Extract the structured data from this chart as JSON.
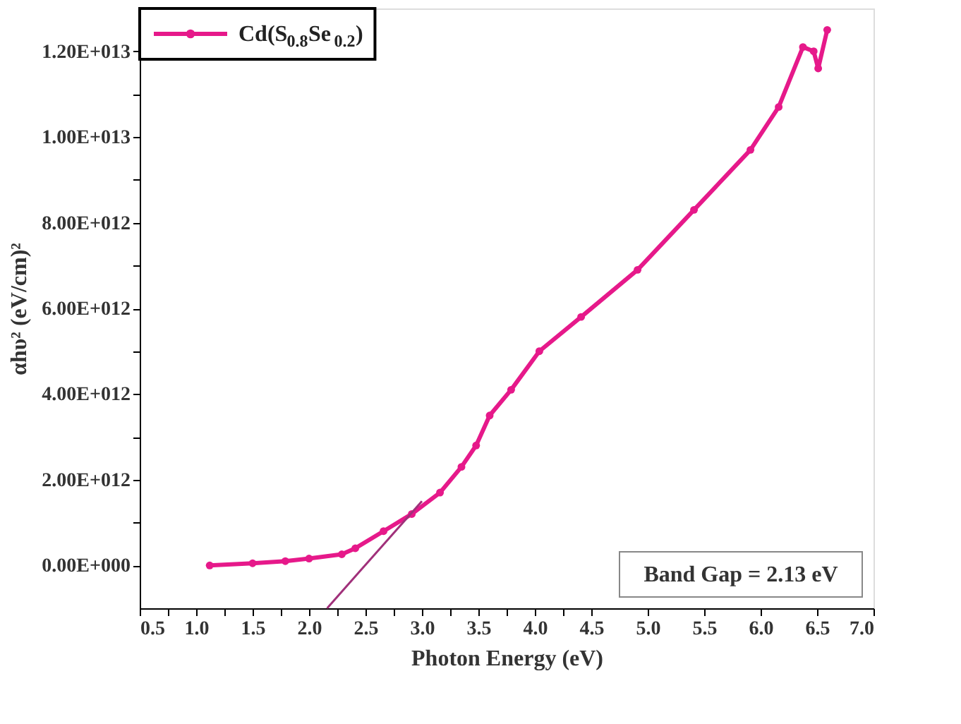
{
  "chart_data": {
    "type": "line",
    "xlabel": "Photon Energy (eV)",
    "ylabel": "αhυ² (eV/cm)²",
    "series": [
      {
        "name": "Cd(S$_{0.8}$Se$_{0.2}$)",
        "color": "#e6198a",
        "marker": "circle",
        "x": [
          1.12,
          1.5,
          1.79,
          2.0,
          2.29,
          2.41,
          2.66,
          2.91,
          3.16,
          3.35,
          3.48,
          3.6,
          3.79,
          4.04,
          4.41,
          4.91,
          5.41,
          5.91,
          6.16,
          6.375,
          6.47,
          6.51,
          6.59
        ],
        "values": [
          0.0,
          50000000000.0,
          100000000000.0,
          160000000000.0,
          260000000000.0,
          400000000000.0,
          800000000000.0,
          1200000000000.0,
          1700000000000.0,
          2300000000000.0,
          2800000000000.0,
          3500000000000.0,
          4100000000000.0,
          5000000000000.0,
          5800000000000.0,
          6900000000000.0,
          8300000000000.0,
          9700000000000.0,
          10700000000000.0,
          12100000000000.0,
          12000000000000.0,
          11600000000000.0,
          12500000000000.0
        ]
      },
      {
        "type": "line",
        "color": "#a0307a",
        "marker": "none",
        "x": [
          2.16,
          3.0
        ],
        "values": [
          -1000000000000.0,
          1500000000000.0
        ]
      }
    ],
    "xlim": [
      0.5,
      7.0
    ],
    "xticks": [
      {
        "value": 0.5,
        "label": "0.5"
      },
      {
        "value": 0.75,
        "label": null
      },
      {
        "value": 1.0,
        "label": "1.0"
      },
      {
        "value": 1.25,
        "label": null
      },
      {
        "value": 1.5,
        "label": "1.5"
      },
      {
        "value": 1.75,
        "label": null
      },
      {
        "value": 2.0,
        "label": "2.0"
      },
      {
        "value": 2.25,
        "label": null
      },
      {
        "value": 2.5,
        "label": "2.5"
      },
      {
        "value": 2.75,
        "label": null
      },
      {
        "value": 3.0,
        "label": "3.0"
      },
      {
        "value": 3.25,
        "label": null
      },
      {
        "value": 3.5,
        "label": "3.5"
      },
      {
        "value": 3.75,
        "label": null
      },
      {
        "value": 4.0,
        "label": "4.0"
      },
      {
        "value": 4.25,
        "label": null
      },
      {
        "value": 4.5,
        "label": "4.5"
      },
      {
        "value": 5.0,
        "label": "5.0"
      },
      {
        "value": 5.5,
        "label": "5.5"
      },
      {
        "value": 6.0,
        "label": "6.0"
      },
      {
        "value": 6.5,
        "label": "6.5"
      },
      {
        "value": 7.0,
        "label": "7.0"
      }
    ],
    "ylim": [
      -1000000000000.0,
      13000000000000.0
    ],
    "yticks": [
      {
        "value": 0,
        "label": "0.00E+000"
      },
      {
        "value": 1000000000000.0,
        "label": null
      },
      {
        "value": 2000000000000.0,
        "label": "2.00E+012"
      },
      {
        "value": 3000000000000.0,
        "label": null
      },
      {
        "value": 4000000000000.0,
        "label": "4.00E+012"
      },
      {
        "value": 5000000000000.0,
        "label": null
      },
      {
        "value": 6000000000000.0,
        "label": "6.00E+012"
      },
      {
        "value": 7000000000000.0,
        "label": null
      },
      {
        "value": 8000000000000.0,
        "label": "8.00E+012"
      },
      {
        "value": 9000000000000.0,
        "label": null
      },
      {
        "value": 10000000000000.0,
        "label": "1.00E+013"
      },
      {
        "value": 11000000000000.0,
        "label": null
      },
      {
        "value": 12000000000000.0,
        "label": "1.20E+013"
      }
    ],
    "annotations": [
      "Band Gap = 2.13 eV"
    ],
    "legend": "top left",
    "grid": false
  }
}
